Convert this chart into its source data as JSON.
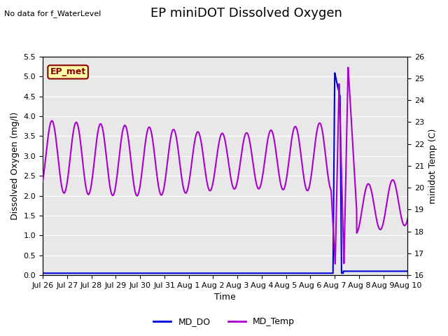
{
  "title": "EP miniDOT Dissolved Oxygen",
  "no_data_text": "No data for f_WaterLevel",
  "xlabel": "Time",
  "ylabel_left": "Dissolved Oxygen (mg/l)",
  "ylabel_right": "minidot Temp (C)",
  "ylim_left": [
    0.0,
    5.5
  ],
  "ylim_right": [
    16.0,
    26.0
  ],
  "yticks_left": [
    0.0,
    0.5,
    1.0,
    1.5,
    2.0,
    2.5,
    3.0,
    3.5,
    4.0,
    4.5,
    5.0,
    5.5
  ],
  "yticks_right": [
    16.0,
    17.0,
    18.0,
    19.0,
    20.0,
    21.0,
    22.0,
    23.0,
    24.0,
    25.0,
    26.0
  ],
  "ep_met_label": "EP_met",
  "legend_entries": [
    "MD_DO",
    "MD_Temp"
  ],
  "legend_colors": [
    "#0000dd",
    "#aa00cc"
  ],
  "background_color": "#e8e8e8",
  "line_do_color": "#0000dd",
  "line_temp_color": "#aa00cc",
  "title_fontsize": 13,
  "axis_label_fontsize": 9,
  "tick_fontsize": 8,
  "xtick_labels": [
    "Jul 26",
    "Jul 27",
    "Jul 28",
    "Jul 29",
    "Jul 30",
    "Jul 31",
    "Aug 1",
    "Aug 2",
    "Aug 3",
    "Aug 4",
    "Aug 5",
    "Aug 6",
    "Aug 7",
    "Aug 8",
    "Aug 9",
    "Aug 10"
  ],
  "xtick_days": [
    0,
    1,
    2,
    3,
    4,
    5,
    6,
    7,
    8,
    9,
    10,
    11,
    12,
    13,
    14,
    15
  ]
}
